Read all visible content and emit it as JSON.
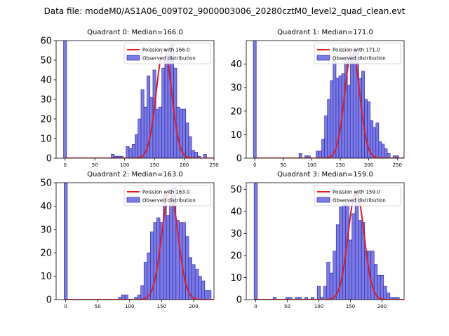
{
  "figure": {
    "suptitle": "Data file: modeM0/AS1A06_009T02_9000003006_20280cztM0_level2_quad_clean.evt",
    "colors": {
      "bar_fill": "#7b7bea",
      "bar_edge": "#2a2a9a",
      "poisson": "#e31a1c",
      "axis": "#000000"
    }
  },
  "chart_data": [
    {
      "type": "bar",
      "title": "Quadrant 0: Median=166.0",
      "median": 166.0,
      "xlim": [
        -15,
        250
      ],
      "ylim": [
        0,
        60
      ],
      "xticks": [
        0,
        50,
        100,
        150,
        200,
        250
      ],
      "yticks": [
        0,
        10,
        20,
        30,
        40,
        50,
        60
      ],
      "bin_width": 5,
      "legend": {
        "placement": "top-right",
        "line_label": "Poission with 166.0",
        "bar_label": "Observed distribution"
      },
      "bins": [
        {
          "x": 0,
          "count": 60
        },
        {
          "x": 80,
          "count": 2
        },
        {
          "x": 85,
          "count": 1
        },
        {
          "x": 90,
          "count": 1
        },
        {
          "x": 95,
          "count": 1
        },
        {
          "x": 105,
          "count": 6
        },
        {
          "x": 110,
          "count": 5
        },
        {
          "x": 115,
          "count": 7
        },
        {
          "x": 120,
          "count": 12
        },
        {
          "x": 125,
          "count": 20
        },
        {
          "x": 130,
          "count": 35
        },
        {
          "x": 135,
          "count": 26
        },
        {
          "x": 140,
          "count": 42
        },
        {
          "x": 145,
          "count": 31
        },
        {
          "x": 150,
          "count": 45
        },
        {
          "x": 155,
          "count": 25
        },
        {
          "x": 160,
          "count": 26
        },
        {
          "x": 165,
          "count": 46
        },
        {
          "x": 170,
          "count": 52
        },
        {
          "x": 175,
          "count": 53
        },
        {
          "x": 180,
          "count": 58
        },
        {
          "x": 185,
          "count": 46
        },
        {
          "x": 190,
          "count": 26
        },
        {
          "x": 195,
          "count": 25
        },
        {
          "x": 200,
          "count": 25
        },
        {
          "x": 205,
          "count": 18
        },
        {
          "x": 210,
          "count": 11
        },
        {
          "x": 215,
          "count": 4
        },
        {
          "x": 220,
          "count": 3
        },
        {
          "x": 225,
          "count": 1
        },
        {
          "x": 235,
          "count": 2
        }
      ],
      "poisson_peak": 56
    },
    {
      "type": "bar",
      "title": "Quadrant 1: Median=171.0",
      "median": 171.0,
      "xlim": [
        -15,
        262
      ],
      "ylim": [
        0,
        50
      ],
      "xticks": [
        0,
        50,
        100,
        150,
        200,
        250
      ],
      "yticks": [
        0,
        10,
        20,
        30,
        40
      ],
      "bin_width": 5,
      "legend": {
        "placement": "top-right",
        "line_label": "Poission with 171.0",
        "bar_label": "Observed distribution"
      },
      "bins": [
        {
          "x": 0,
          "count": 50
        },
        {
          "x": 80,
          "count": 2
        },
        {
          "x": 90,
          "count": 1
        },
        {
          "x": 95,
          "count": 1
        },
        {
          "x": 110,
          "count": 3
        },
        {
          "x": 115,
          "count": 3
        },
        {
          "x": 120,
          "count": 8
        },
        {
          "x": 125,
          "count": 18
        },
        {
          "x": 130,
          "count": 25
        },
        {
          "x": 135,
          "count": 33
        },
        {
          "x": 140,
          "count": 42
        },
        {
          "x": 145,
          "count": 34
        },
        {
          "x": 150,
          "count": 35
        },
        {
          "x": 155,
          "count": 36
        },
        {
          "x": 160,
          "count": 43
        },
        {
          "x": 165,
          "count": 31
        },
        {
          "x": 170,
          "count": 44
        },
        {
          "x": 175,
          "count": 47
        },
        {
          "x": 180,
          "count": 45
        },
        {
          "x": 185,
          "count": 34
        },
        {
          "x": 190,
          "count": 37
        },
        {
          "x": 195,
          "count": 25
        },
        {
          "x": 200,
          "count": 24
        },
        {
          "x": 205,
          "count": 16
        },
        {
          "x": 210,
          "count": 13
        },
        {
          "x": 215,
          "count": 15
        },
        {
          "x": 220,
          "count": 7
        },
        {
          "x": 225,
          "count": 6
        },
        {
          "x": 230,
          "count": 4
        },
        {
          "x": 235,
          "count": 2
        },
        {
          "x": 245,
          "count": 1
        },
        {
          "x": 250,
          "count": 1
        }
      ],
      "poisson_peak": 46
    },
    {
      "type": "bar",
      "title": "Quadrant 2: Median=163.0",
      "median": 163.0,
      "xlim": [
        -15,
        232
      ],
      "ylim": [
        0,
        50
      ],
      "xticks": [
        0,
        50,
        100,
        150,
        200
      ],
      "yticks": [
        0,
        10,
        20,
        30,
        40,
        50
      ],
      "bin_width": 5,
      "legend": {
        "placement": "top-right",
        "line_label": "Poission with 163.0",
        "bar_label": "Observed distribution"
      },
      "bins": [
        {
          "x": 0,
          "count": 50
        },
        {
          "x": 85,
          "count": 1
        },
        {
          "x": 90,
          "count": 2
        },
        {
          "x": 95,
          "count": 2
        },
        {
          "x": 110,
          "count": 1
        },
        {
          "x": 115,
          "count": 2
        },
        {
          "x": 120,
          "count": 6
        },
        {
          "x": 125,
          "count": 16
        },
        {
          "x": 130,
          "count": 20
        },
        {
          "x": 135,
          "count": 29
        },
        {
          "x": 140,
          "count": 33
        },
        {
          "x": 145,
          "count": 35
        },
        {
          "x": 150,
          "count": 33
        },
        {
          "x": 155,
          "count": 45
        },
        {
          "x": 160,
          "count": 36
        },
        {
          "x": 165,
          "count": 42
        },
        {
          "x": 170,
          "count": 48
        },
        {
          "x": 175,
          "count": 34
        },
        {
          "x": 180,
          "count": 33
        },
        {
          "x": 185,
          "count": 33
        },
        {
          "x": 190,
          "count": 27
        },
        {
          "x": 195,
          "count": 18
        },
        {
          "x": 200,
          "count": 15
        },
        {
          "x": 205,
          "count": 13
        },
        {
          "x": 210,
          "count": 10
        },
        {
          "x": 215,
          "count": 8
        },
        {
          "x": 220,
          "count": 4
        },
        {
          "x": 225,
          "count": 4
        }
      ],
      "poisson_peak": 46
    },
    {
      "type": "bar",
      "title": "Quadrant 3: Median=159.0",
      "median": 159.0,
      "xlim": [
        -15,
        235
      ],
      "ylim": [
        0,
        53
      ],
      "xticks": [
        0,
        50,
        100,
        150,
        200
      ],
      "yticks": [
        0,
        10,
        20,
        30,
        40,
        50
      ],
      "bin_width": 5,
      "legend": {
        "placement": "top-right",
        "line_label": "Poission with 159.0",
        "bar_label": "Observed distribution"
      },
      "bins": [
        {
          "x": 0,
          "count": 53
        },
        {
          "x": 30,
          "count": 1
        },
        {
          "x": 50,
          "count": 1
        },
        {
          "x": 55,
          "count": 1
        },
        {
          "x": 65,
          "count": 1
        },
        {
          "x": 70,
          "count": 1
        },
        {
          "x": 80,
          "count": 1
        },
        {
          "x": 90,
          "count": 1
        },
        {
          "x": 100,
          "count": 6
        },
        {
          "x": 105,
          "count": 1
        },
        {
          "x": 110,
          "count": 6
        },
        {
          "x": 115,
          "count": 17
        },
        {
          "x": 120,
          "count": 12
        },
        {
          "x": 125,
          "count": 22
        },
        {
          "x": 130,
          "count": 34
        },
        {
          "x": 135,
          "count": 42
        },
        {
          "x": 140,
          "count": 43
        },
        {
          "x": 145,
          "count": 45
        },
        {
          "x": 150,
          "count": 27
        },
        {
          "x": 155,
          "count": 39
        },
        {
          "x": 160,
          "count": 48
        },
        {
          "x": 165,
          "count": 36
        },
        {
          "x": 170,
          "count": 35
        },
        {
          "x": 175,
          "count": 22
        },
        {
          "x": 180,
          "count": 22
        },
        {
          "x": 185,
          "count": 22
        },
        {
          "x": 190,
          "count": 16
        },
        {
          "x": 195,
          "count": 11
        },
        {
          "x": 200,
          "count": 11
        },
        {
          "x": 205,
          "count": 6
        },
        {
          "x": 210,
          "count": 3
        },
        {
          "x": 215,
          "count": 1
        },
        {
          "x": 220,
          "count": 1
        },
        {
          "x": 225,
          "count": 1
        }
      ],
      "poisson_peak": 49
    }
  ]
}
